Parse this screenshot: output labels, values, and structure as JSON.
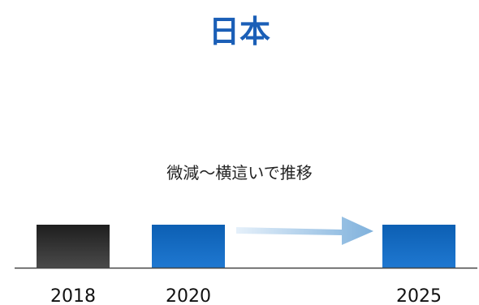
{
  "chart_data": {
    "type": "bar",
    "title": "日本",
    "categories": [
      "2018",
      "2020",
      "2025"
    ],
    "values": [
      1,
      1,
      1
    ],
    "annotation": "微減〜横這いで推移",
    "bar_colors": [
      "#1a1a1a",
      "#0d63b8",
      "#0d63b8"
    ],
    "arrow_color": "#7fb1dc",
    "xlabel": "",
    "ylabel": "",
    "grid": false,
    "legend": "none"
  }
}
